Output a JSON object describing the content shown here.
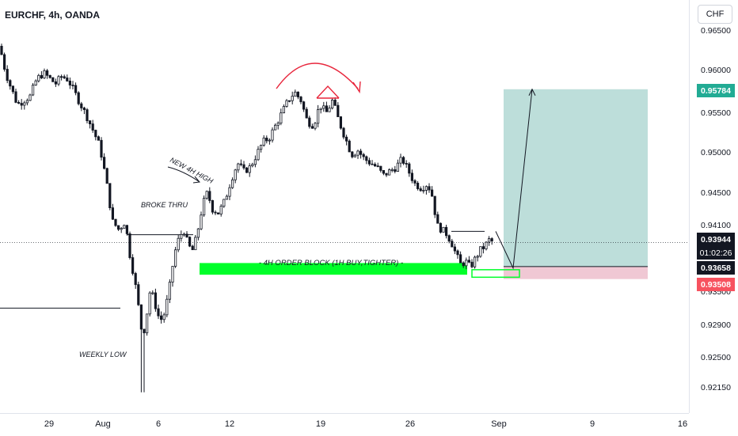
{
  "header": {
    "symbol_title": "EURCHF, 4h, OANDA",
    "currency_label": "CHF"
  },
  "badges": {
    "target_price": "0.95784",
    "current_price": "0.93944",
    "countdown": "01:02:26",
    "entry_price": "0.93658",
    "stop_price": "0.93508"
  },
  "colors": {
    "bull": "#089981",
    "bear": "#f23645",
    "candle": "#131722",
    "order_block": "#00ff2a",
    "target_zone": "#b2d8d4",
    "stop_zone": "#f0c8d4",
    "arc": "#e8263c",
    "target_badge": "#22ab94",
    "stop_badge": "#f7525f"
  },
  "annotations": {
    "order_block": "- 4H ORDER BLOCK (1H BUY,TIGHTER) -",
    "broke_thru": "BROKE THRU",
    "new_high": "NEW 4H HIGH",
    "weekly_low": "WEEKLY LOW"
  },
  "chart_data": {
    "type": "candlestick",
    "title": "EURCHF, 4h, OANDA",
    "currency": "CHF",
    "price_ticks": [
      "0.96500",
      "0.96000",
      "0.95500",
      "0.95000",
      "0.94500",
      "0.94100",
      "0.93500",
      "0.92900",
      "0.92500",
      "0.92150"
    ],
    "time_ticks": [
      "29",
      "Aug",
      "6",
      "12",
      "19",
      "26",
      "Sep",
      "9",
      "16"
    ],
    "ylim": [
      0.9196,
      0.9663
    ],
    "path": [
      {
        "t": 0,
        "p": 0.963
      },
      {
        "t": 4,
        "p": 0.961
      },
      {
        "t": 10,
        "p": 0.959
      },
      {
        "t": 16,
        "p": 0.9575
      },
      {
        "t": 22,
        "p": 0.956
      },
      {
        "t": 30,
        "p": 0.9565
      },
      {
        "t": 38,
        "p": 0.957
      },
      {
        "t": 46,
        "p": 0.959
      },
      {
        "t": 55,
        "p": 0.9598
      },
      {
        "t": 62,
        "p": 0.9592
      },
      {
        "t": 70,
        "p": 0.9585
      },
      {
        "t": 78,
        "p": 0.9594
      },
      {
        "t": 86,
        "p": 0.959
      },
      {
        "t": 94,
        "p": 0.9575
      },
      {
        "t": 102,
        "p": 0.956
      },
      {
        "t": 110,
        "p": 0.9545
      },
      {
        "t": 118,
        "p": 0.9528
      },
      {
        "t": 126,
        "p": 0.951
      },
      {
        "t": 134,
        "p": 0.947
      },
      {
        "t": 142,
        "p": 0.942
      },
      {
        "t": 150,
        "p": 0.941
      },
      {
        "t": 158,
        "p": 0.942
      },
      {
        "t": 164,
        "p": 0.938
      },
      {
        "t": 170,
        "p": 0.935
      },
      {
        "t": 176,
        "p": 0.931
      },
      {
        "t": 180,
        "p": 0.928
      },
      {
        "t": 184,
        "p": 0.93
      },
      {
        "t": 190,
        "p": 0.934
      },
      {
        "t": 196,
        "p": 0.932
      },
      {
        "t": 202,
        "p": 0.93
      },
      {
        "t": 208,
        "p": 0.931
      },
      {
        "t": 214,
        "p": 0.934
      },
      {
        "t": 220,
        "p": 0.938
      },
      {
        "t": 226,
        "p": 0.94
      },
      {
        "t": 232,
        "p": 0.941
      },
      {
        "t": 238,
        "p": 0.939
      },
      {
        "t": 244,
        "p": 0.9385
      },
      {
        "t": 250,
        "p": 0.941
      },
      {
        "t": 256,
        "p": 0.944
      },
      {
        "t": 262,
        "p": 0.9455
      },
      {
        "t": 268,
        "p": 0.9435
      },
      {
        "t": 276,
        "p": 0.943
      },
      {
        "t": 284,
        "p": 0.9445
      },
      {
        "t": 292,
        "p": 0.947
      },
      {
        "t": 300,
        "p": 0.949
      },
      {
        "t": 308,
        "p": 0.948
      },
      {
        "t": 316,
        "p": 0.9485
      },
      {
        "t": 324,
        "p": 0.95
      },
      {
        "t": 332,
        "p": 0.9515
      },
      {
        "t": 340,
        "p": 0.952
      },
      {
        "t": 348,
        "p": 0.9535
      },
      {
        "t": 356,
        "p": 0.955
      },
      {
        "t": 364,
        "p": 0.9565
      },
      {
        "t": 372,
        "p": 0.9575
      },
      {
        "t": 380,
        "p": 0.9565
      },
      {
        "t": 388,
        "p": 0.954
      },
      {
        "t": 396,
        "p": 0.9535
      },
      {
        "t": 404,
        "p": 0.956
      },
      {
        "t": 412,
        "p": 0.955
      },
      {
        "t": 420,
        "p": 0.9565
      },
      {
        "t": 428,
        "p": 0.954
      },
      {
        "t": 436,
        "p": 0.952
      },
      {
        "t": 444,
        "p": 0.95
      },
      {
        "t": 452,
        "p": 0.9505
      },
      {
        "t": 460,
        "p": 0.9495
      },
      {
        "t": 468,
        "p": 0.949
      },
      {
        "t": 476,
        "p": 0.9485
      },
      {
        "t": 484,
        "p": 0.9475
      },
      {
        "t": 492,
        "p": 0.948
      },
      {
        "t": 500,
        "p": 0.9485
      },
      {
        "t": 508,
        "p": 0.9495
      },
      {
        "t": 516,
        "p": 0.948
      },
      {
        "t": 524,
        "p": 0.9465
      },
      {
        "t": 532,
        "p": 0.946
      },
      {
        "t": 540,
        "p": 0.9465
      },
      {
        "t": 546,
        "p": 0.945
      },
      {
        "t": 552,
        "p": 0.9415
      },
      {
        "t": 558,
        "p": 0.941
      },
      {
        "t": 564,
        "p": 0.9405
      },
      {
        "t": 570,
        "p": 0.9395
      },
      {
        "t": 576,
        "p": 0.938
      },
      {
        "t": 582,
        "p": 0.9368
      },
      {
        "t": 588,
        "p": 0.9372
      },
      {
        "t": 594,
        "p": 0.9365
      },
      {
        "t": 600,
        "p": 0.9375
      },
      {
        "t": 606,
        "p": 0.9385
      },
      {
        "t": 612,
        "p": 0.939
      },
      {
        "t": 618,
        "p": 0.9398
      },
      {
        "t": 624,
        "p": 0.9394
      }
    ],
    "horizontal_lines": [
      {
        "from_t": 0,
        "to_t": 152,
        "price": 0.9316
      },
      {
        "from_t": 160,
        "to_t": 244,
        "price": 0.9404
      },
      {
        "from_t": 570,
        "to_t": 612,
        "price": 0.9408
      }
    ],
    "order_block": {
      "from_t": 252,
      "to_t": 590,
      "price_high": 0.937,
      "price_low": 0.9356
    },
    "entry_box": {
      "from_t": 596,
      "to_t": 656,
      "price_high": 0.9362,
      "price_low": 0.9353
    },
    "position": {
      "from_t": 636,
      "to_t": 818,
      "target": 0.95784,
      "entry": 0.93658,
      "stop": 0.93508
    },
    "projection": [
      {
        "t": 626,
        "p": 0.9408
      },
      {
        "t": 648,
        "p": 0.9364
      },
      {
        "t": 672,
        "p": 0.95784
      }
    ],
    "current_price": 0.93944,
    "weekly_low": 0.9215
  }
}
